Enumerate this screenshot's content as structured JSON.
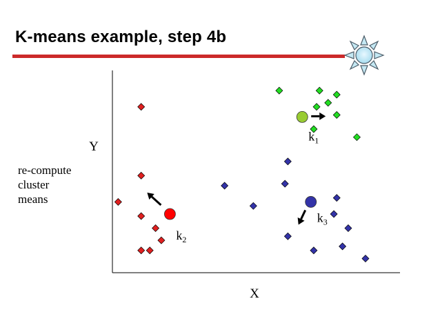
{
  "slide": {
    "title": "K-means example, step 4b",
    "side_text": [
      "re-compute",
      "cluster",
      "means"
    ],
    "icon": "sun-icon",
    "accent_color": "#cc2a2a"
  },
  "chart_data": {
    "type": "scatter",
    "xlabel": "X",
    "ylabel": "Y",
    "xlim": [
      0,
      100
    ],
    "ylim": [
      0,
      100
    ],
    "grid": false,
    "series": [
      {
        "color": "#e02020",
        "points": [
          [
            10,
            82
          ],
          [
            10,
            48
          ],
          [
            2,
            35
          ],
          [
            10,
            28
          ],
          [
            15,
            22
          ],
          [
            17,
            16
          ],
          [
            10,
            11
          ],
          [
            13,
            11
          ]
        ]
      },
      {
        "color": "#22dd22",
        "points": [
          [
            58,
            90
          ],
          [
            72,
            90
          ],
          [
            78,
            88
          ],
          [
            75,
            84
          ],
          [
            71,
            82
          ],
          [
            78,
            78
          ],
          [
            70,
            71
          ],
          [
            85,
            67
          ]
        ]
      },
      {
        "color": "#3333a8",
        "points": [
          [
            61,
            55
          ],
          [
            39,
            43
          ],
          [
            60,
            44
          ],
          [
            49,
            33
          ],
          [
            78,
            37
          ],
          [
            77,
            29
          ],
          [
            82,
            22
          ],
          [
            61,
            18
          ],
          [
            70,
            11
          ],
          [
            80,
            13
          ],
          [
            88,
            7
          ]
        ]
      }
    ],
    "centroids": [
      {
        "label": "k",
        "index": "1",
        "color": "#99cc33",
        "x": 66,
        "y": 77,
        "arrow": "right"
      },
      {
        "label": "k",
        "index": "2",
        "color": "#ff0000",
        "x": 20,
        "y": 29,
        "arrow": "up-left"
      },
      {
        "label": "k",
        "index": "3",
        "color": "#3333a8",
        "x": 69,
        "y": 35,
        "arrow": "down-left"
      }
    ]
  }
}
